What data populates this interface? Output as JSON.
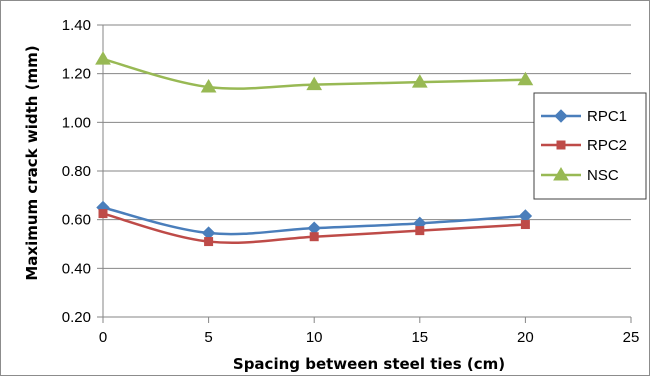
{
  "chart_data": {
    "type": "line",
    "title": "",
    "xlabel": "Spacing between steel ties (cm)",
    "ylabel": "Maximum crack width (mm)",
    "xlim": [
      0,
      25
    ],
    "ylim": [
      0.2,
      1.4
    ],
    "x_ticks": [
      "0",
      "5",
      "10",
      "15",
      "20",
      "25"
    ],
    "y_ticks": [
      "0.20",
      "0.40",
      "0.60",
      "0.80",
      "1.00",
      "1.20",
      "1.40"
    ],
    "x": [
      0,
      5,
      10,
      15,
      20
    ],
    "grid": "horizontal",
    "legend_position": "right",
    "smooth": true,
    "series": [
      {
        "name": "RPC1",
        "values": [
          0.65,
          0.545,
          0.565,
          0.585,
          0.615
        ],
        "color": "#4a7ebb",
        "marker": "diamond"
      },
      {
        "name": "RPC2",
        "values": [
          0.625,
          0.51,
          0.53,
          0.555,
          0.58
        ],
        "color": "#be4b48",
        "marker": "square"
      },
      {
        "name": "NSC",
        "values": [
          1.26,
          1.145,
          1.155,
          1.165,
          1.175
        ],
        "color": "#98b954",
        "marker": "triangle"
      }
    ]
  }
}
